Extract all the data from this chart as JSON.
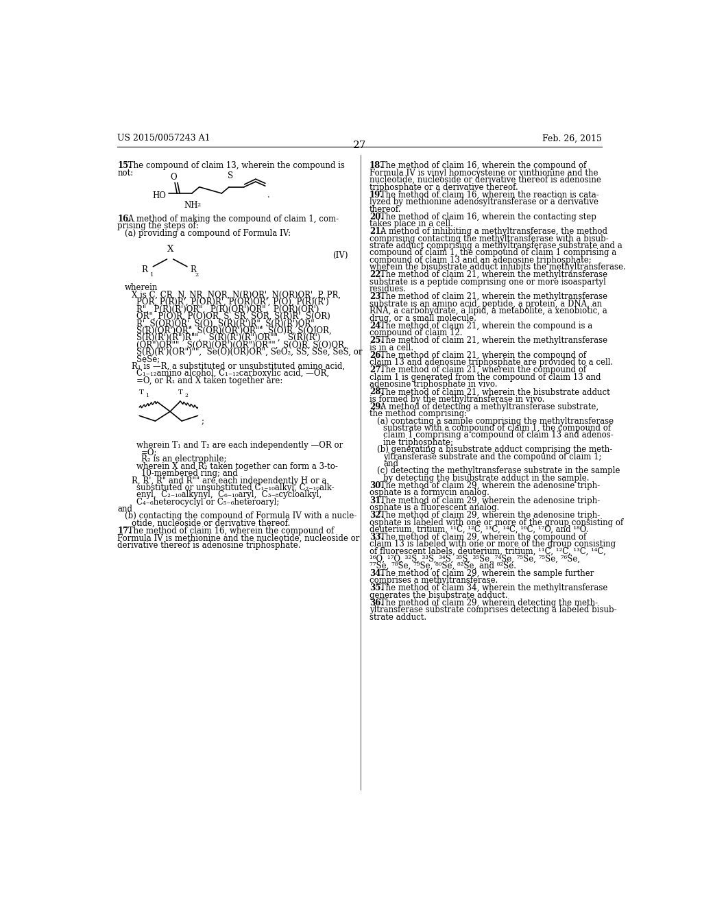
{
  "page_number": "27",
  "header_left": "US 2015/0057243 A1",
  "header_right": "Feb. 26, 2015",
  "background_color": "#ffffff"
}
